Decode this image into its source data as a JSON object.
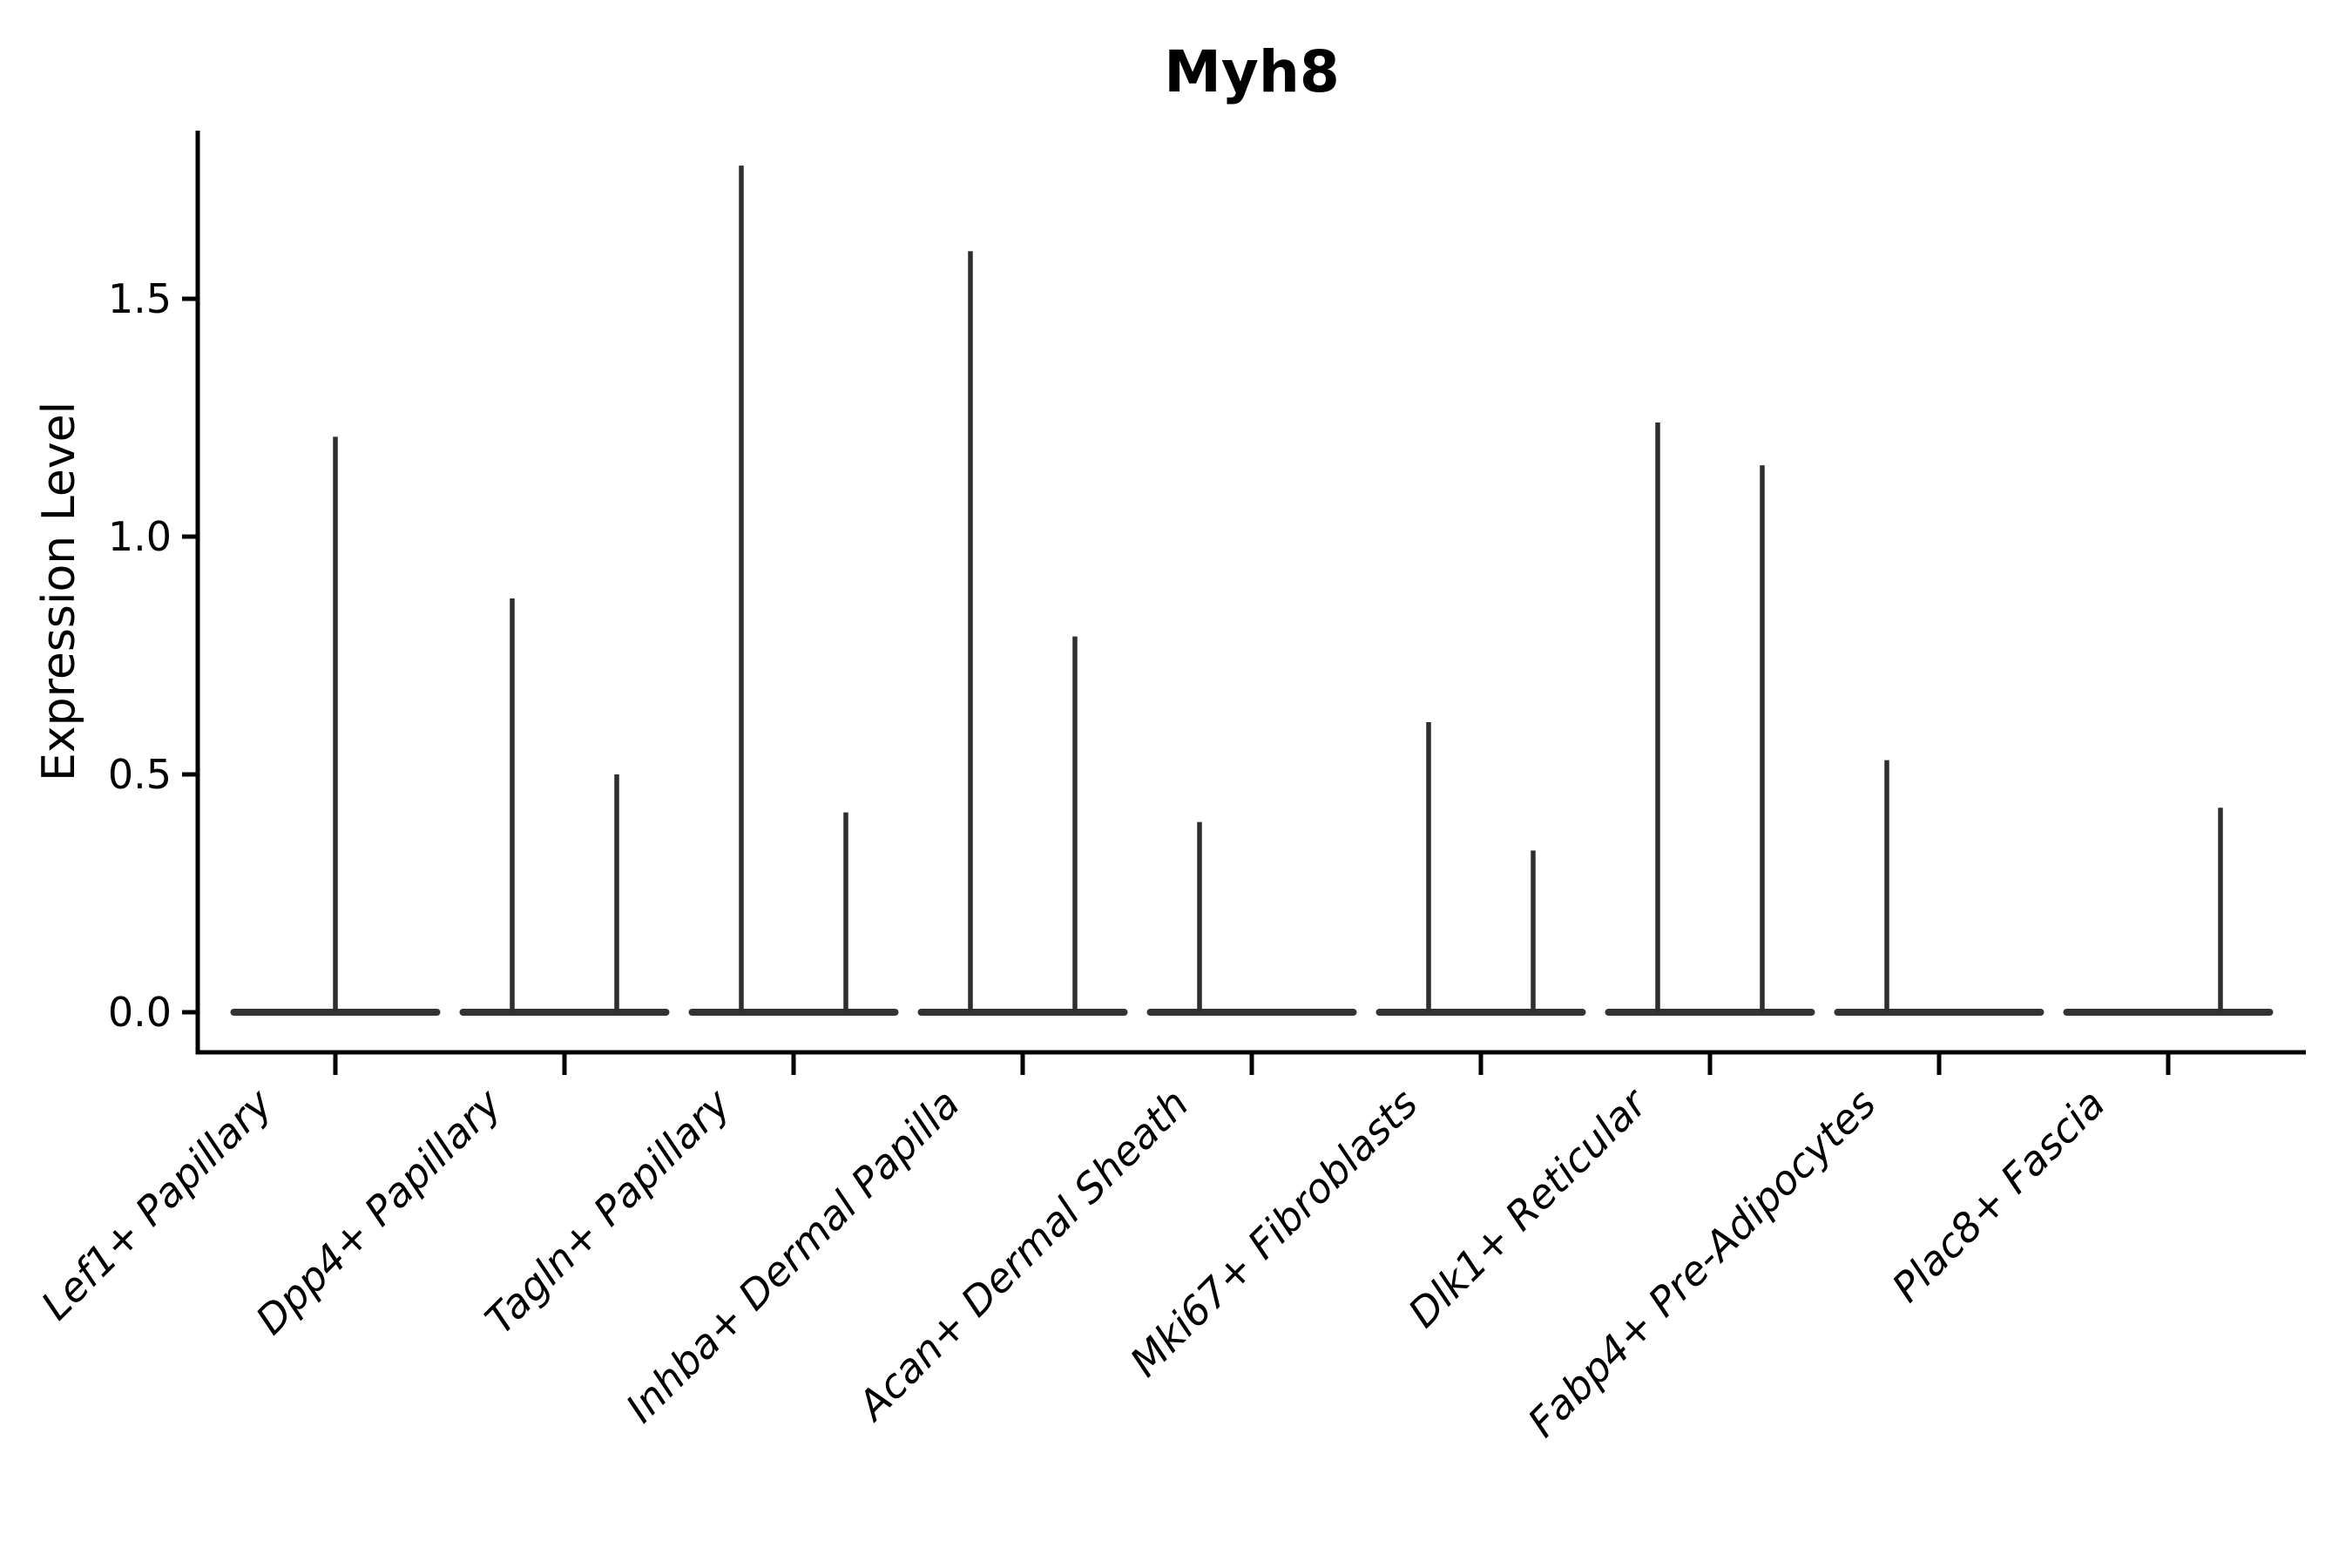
{
  "chart_data": {
    "type": "violin",
    "title": "Myh8",
    "ylabel": "Expression Level",
    "xlabel": "",
    "yticks": [
      "0.0",
      "0.5",
      "1.0",
      "1.5"
    ],
    "ytick_values": [
      0,
      0.5,
      1.0,
      1.5
    ],
    "ylim": [
      -0.08,
      1.85
    ],
    "grid": false,
    "legend": "none",
    "background": "#ffffff",
    "colors": {
      "violin": "#333333",
      "spike": "#2e2e2e",
      "axis": "#000000",
      "text": "#000000"
    },
    "style_notes": "Seurat/scanpy-style stacked violin: flat dense body at 0 with thin min-max spike lines; left+bottom spines only; x labels italic rotated 45deg",
    "categories": [
      "Lef1+ Papillary",
      "Dpp4+ Papillary",
      "Tagln+ Papillary",
      "Inhba+ Dermal Papilla",
      "Acan+ Dermal Sheath",
      "Mki67+ Fibroblasts",
      "Dlk1+ Reticular",
      "Fabp4+ Pre-Adipocytes",
      "Plac8+ Fascia"
    ],
    "violins": [
      {
        "label": "Lef1+ Papillary",
        "baseline_value": 0,
        "spikes": [
          {
            "position": "center",
            "value": 1.21
          }
        ]
      },
      {
        "label": "Dpp4+ Papillary",
        "baseline_value": 0,
        "spikes": [
          {
            "position": "left",
            "value": 0.87
          },
          {
            "position": "right",
            "value": 0.5
          }
        ]
      },
      {
        "label": "Tagln+ Papillary",
        "baseline_value": 0,
        "spikes": [
          {
            "position": "left",
            "value": 1.78
          },
          {
            "position": "right",
            "value": 0.42
          }
        ]
      },
      {
        "label": "Inhba+ Dermal Papilla",
        "baseline_value": 0,
        "spikes": [
          {
            "position": "left",
            "value": 1.6
          },
          {
            "position": "right",
            "value": 0.79
          }
        ]
      },
      {
        "label": "Acan+ Dermal Sheath",
        "baseline_value": 0,
        "spikes": [
          {
            "position": "left",
            "value": 0.4
          }
        ]
      },
      {
        "label": "Mki67+ Fibroblasts",
        "baseline_value": 0,
        "spikes": [
          {
            "position": "left",
            "value": 0.61
          },
          {
            "position": "right",
            "value": 0.34
          }
        ]
      },
      {
        "label": "Dlk1+ Reticular",
        "baseline_value": 0,
        "spikes": [
          {
            "position": "left",
            "value": 1.24
          },
          {
            "position": "right",
            "value": 1.15
          }
        ]
      },
      {
        "label": "Fabp4+ Pre-Adipocytes",
        "baseline_value": 0,
        "spikes": [
          {
            "position": "left",
            "value": 0.53
          }
        ]
      },
      {
        "label": "Plac8+ Fascia",
        "baseline_value": 0,
        "spikes": [
          {
            "position": "right",
            "value": 0.43
          }
        ]
      }
    ]
  }
}
